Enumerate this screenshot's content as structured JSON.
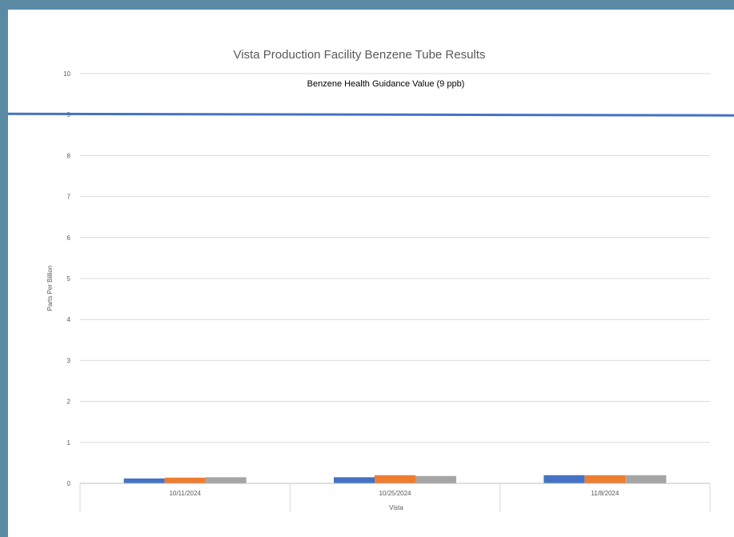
{
  "chart_data": {
    "type": "bar",
    "title": "Vista Production Facility Benzene Tube Results",
    "xlabel": "Vista",
    "ylabel": "Parts Per Billion",
    "ylim": [
      0,
      10
    ],
    "yticks": [
      "0",
      "1",
      "2",
      "3",
      "4",
      "5",
      "6",
      "7",
      "8",
      "9",
      "10"
    ],
    "categories": [
      "10/11/2024",
      "10/25/2024",
      "11/8/2024"
    ],
    "series": [
      {
        "color": "#4472c4",
        "values": [
          0.12,
          0.15,
          0.2
        ]
      },
      {
        "color": "#ed7d31",
        "values": [
          0.14,
          0.2,
          0.2
        ]
      },
      {
        "color": "#a5a5a5",
        "values": [
          0.15,
          0.18,
          0.2
        ]
      }
    ],
    "reference_line": {
      "label": "Benzene Health Guidance Value (9 ppb)",
      "value": 9,
      "color": "#4472c4"
    },
    "grid": true,
    "legend": "none"
  }
}
